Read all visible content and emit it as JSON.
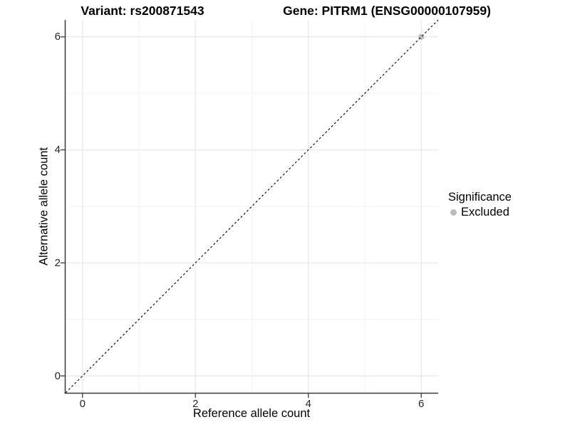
{
  "chart_data": {
    "type": "scatter",
    "title_left": "Variant: rs200871543",
    "title_right": "Gene: PITRM1 (ENSG00000107959)",
    "xlabel": "Reference allele count",
    "ylabel": "Alternative allele count",
    "xlim": [
      -0.3,
      6.3
    ],
    "ylim": [
      -0.3,
      6.3
    ],
    "x_ticks": [
      0,
      2,
      4,
      6
    ],
    "y_ticks": [
      0,
      2,
      4,
      6
    ],
    "grid_minor": [
      1,
      3,
      5
    ],
    "grid": "on",
    "legend": {
      "title": "Significance",
      "position": "right",
      "items": [
        {
          "label": "Excluded",
          "color": "#bcbcbc"
        }
      ]
    },
    "series": [
      {
        "name": "Excluded",
        "color": "#bcbcbc",
        "points": [
          {
            "x": 6,
            "y": 6
          }
        ]
      }
    ],
    "reference_line": {
      "type": "identity",
      "slope": 1,
      "intercept": 0,
      "style": "dashed",
      "color": "#0a0a0a"
    }
  },
  "colors": {
    "background": "#ffffff",
    "grid_major": "#e3e3e3",
    "grid_minor": "#f0f0f0",
    "axis": "#3a3a3a",
    "tick_label": "#262626"
  }
}
